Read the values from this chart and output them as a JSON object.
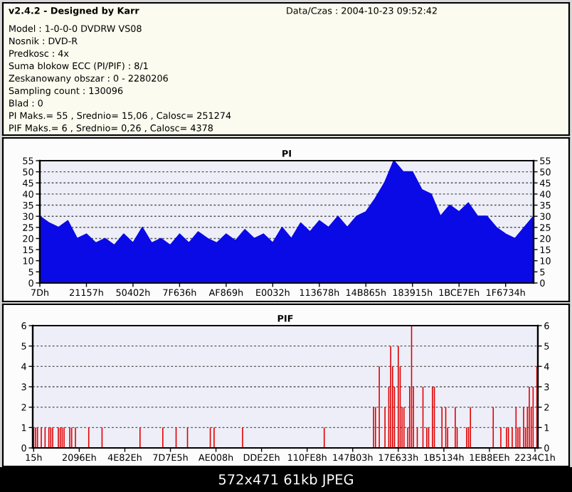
{
  "chart_data": [
    {
      "type": "other",
      "title": "v2.4.2 - Designed by Karr",
      "subtitle": "Data/Czas : 2004-10-23 09:52:42",
      "annotations": [
        "Model : 1-0-0-0 DVDRW VS08",
        "Nosnik : DVD-R",
        "Predkosc : 4x",
        "Suma blokow ECC (PI/PIF) : 8/1",
        "Zeskanowany obszar : 0 - 2280206",
        "Sampling count : 130096",
        "Blad : 0",
        "PI Maks.= 55 , Srednio= 15,06 , Calosc= 251274",
        "PIF Maks.= 6 , Srednio= 0,26 , Calosc= 4378"
      ]
    },
    {
      "type": "area",
      "title": "PI",
      "color": "#0a0ae6",
      "categories": [
        "7Dh",
        null,
        null,
        null,
        null,
        "21157h",
        null,
        null,
        null,
        null,
        "50402h",
        null,
        null,
        null,
        null,
        "7F636h",
        null,
        null,
        null,
        null,
        "AF869h",
        null,
        null,
        null,
        null,
        "E0032h",
        null,
        null,
        null,
        null,
        "113678h",
        null,
        null,
        null,
        null,
        "14B865h",
        null,
        null,
        null,
        null,
        "183915h",
        null,
        null,
        null,
        null,
        "1BCE7Eh",
        null,
        null,
        null,
        null,
        "1F6734h",
        null,
        null,
        null
      ],
      "values": [
        30,
        27,
        25,
        28,
        20,
        22,
        18,
        20,
        17,
        22,
        18,
        25,
        18,
        20,
        17,
        22,
        18,
        23,
        20,
        18,
        22,
        19,
        24,
        20,
        22,
        18,
        25,
        20,
        27,
        23,
        28,
        25,
        30,
        25,
        30,
        32,
        38,
        45,
        55,
        50,
        50,
        42,
        40,
        30,
        35,
        32,
        36,
        30,
        30,
        25,
        22,
        20,
        25,
        30
      ],
      "ylim": [
        0,
        55
      ],
      "yticks": [
        0,
        5,
        10,
        15,
        20,
        25,
        30,
        35,
        40,
        45,
        50,
        55
      ],
      "y2lim": [
        0,
        55
      ],
      "y2ticks": [
        0,
        5,
        10,
        15,
        20,
        25,
        30,
        35,
        40,
        45,
        50,
        55
      ],
      "grid": "y"
    },
    {
      "type": "bar",
      "title": "PIF",
      "color": "#e00000",
      "categories": [
        "15h",
        null,
        null,
        null,
        null,
        null,
        null,
        null,
        null,
        null,
        null,
        null,
        null,
        null,
        null,
        null,
        null,
        null,
        null,
        null,
        null,
        null,
        null,
        null,
        "2096Eh",
        null,
        null,
        null,
        null,
        null,
        null,
        null,
        null,
        null,
        null,
        null,
        null,
        null,
        null,
        null,
        null,
        null,
        null,
        null,
        null,
        null,
        null,
        null,
        "4E82Eh",
        null,
        null,
        null,
        null,
        null,
        null,
        null,
        null,
        null,
        null,
        null,
        null,
        null,
        null,
        null,
        null,
        null,
        null,
        null,
        null,
        null,
        null,
        null,
        "7D7E5h",
        null,
        null,
        null,
        null,
        null,
        null,
        null,
        null,
        null,
        null,
        null,
        null,
        null,
        null,
        null,
        null,
        null,
        null,
        null,
        null,
        null,
        null,
        null,
        "AE008h",
        null,
        null,
        null,
        null,
        null,
        null,
        null,
        null,
        null,
        null,
        null,
        null,
        null,
        null,
        null,
        null,
        null,
        null,
        null,
        null,
        null,
        null,
        null,
        "DDE2Eh",
        null,
        null,
        null,
        null,
        null,
        null,
        null,
        null,
        null,
        null,
        null,
        null,
        null,
        null,
        null,
        null,
        null,
        null,
        null,
        null,
        null,
        null,
        null,
        "110FE8h",
        null,
        null,
        null,
        null,
        null,
        null,
        null,
        null,
        null,
        null,
        null,
        null,
        null,
        null,
        null,
        null,
        null,
        null,
        null,
        null,
        null,
        null,
        null,
        "147B03h",
        null,
        null,
        null,
        null,
        null,
        null,
        null,
        null,
        null,
        null,
        null,
        null,
        null,
        null,
        null,
        null,
        null,
        null,
        null,
        null,
        null,
        null,
        null,
        "17E633h",
        null,
        null,
        null,
        null,
        null,
        null,
        null,
        null,
        null,
        null,
        null,
        null,
        null,
        null,
        null,
        null,
        null,
        null,
        null,
        null,
        null,
        null,
        null,
        "1B5134h",
        null,
        null,
        null,
        null,
        null,
        null,
        null,
        null,
        null,
        null,
        null,
        null,
        null,
        null,
        null,
        null,
        null,
        null,
        null,
        null,
        null,
        null,
        null,
        "1EB8EEh",
        null,
        null,
        null,
        null,
        null,
        null,
        null,
        null,
        null,
        null,
        null,
        null,
        null,
        null,
        null,
        null,
        null,
        null,
        null,
        null,
        null,
        null,
        null,
        "2234C1h",
        null
      ],
      "values": [
        1,
        1,
        1,
        0,
        1,
        0,
        1,
        0,
        1,
        1,
        1,
        0,
        0,
        1,
        1,
        1,
        1,
        0,
        0,
        1,
        1,
        0,
        1,
        0,
        0,
        0,
        0,
        0,
        0,
        1,
        0,
        0,
        0,
        0,
        0,
        0,
        1,
        0,
        0,
        0,
        0,
        0,
        0,
        0,
        0,
        0,
        0,
        0,
        0,
        0,
        0,
        0,
        0,
        0,
        0,
        0,
        1,
        0,
        0,
        0,
        0,
        0,
        0,
        0,
        0,
        0,
        0,
        0,
        1,
        0,
        0,
        0,
        0,
        0,
        0,
        1,
        0,
        0,
        0,
        0,
        0,
        1,
        0,
        0,
        0,
        0,
        0,
        0,
        0,
        0,
        0,
        0,
        0,
        1,
        0,
        1,
        0,
        0,
        0,
        0,
        0,
        0,
        0,
        0,
        0,
        0,
        0,
        0,
        0,
        0,
        1,
        0,
        0,
        0,
        0,
        0,
        0,
        0,
        0,
        0,
        0,
        0,
        0,
        0,
        0,
        0,
        0,
        0,
        0,
        0,
        0,
        0,
        0,
        0,
        0,
        0,
        0,
        0,
        0,
        0,
        0,
        0,
        0,
        0,
        0,
        0,
        0,
        0,
        0,
        0,
        0,
        0,
        0,
        1,
        0,
        0,
        0,
        0,
        0,
        0,
        0,
        0,
        0,
        0,
        0,
        0,
        0,
        0,
        0,
        0,
        0,
        0,
        0,
        0,
        0,
        0,
        0,
        0,
        0,
        2,
        2,
        0,
        4,
        0,
        0,
        2,
        0,
        3,
        5,
        4,
        3,
        0,
        5,
        4,
        2,
        2,
        0,
        1,
        3,
        6,
        3,
        0,
        1,
        0,
        0,
        3,
        0,
        1,
        1,
        0,
        3,
        3,
        0,
        0,
        0,
        2,
        0,
        2,
        1,
        0,
        0,
        0,
        2,
        1,
        0,
        0,
        0,
        0,
        1,
        1,
        2,
        0,
        0,
        0,
        0,
        0,
        0,
        0,
        0,
        0,
        0,
        0,
        2,
        0,
        0,
        0,
        1,
        0,
        0,
        1,
        1,
        0,
        1,
        0,
        2,
        1,
        1,
        0,
        2,
        1,
        2,
        3,
        2,
        3,
        0,
        4
      ],
      "ylim": [
        0,
        6
      ],
      "yticks": [
        0,
        1,
        2,
        3,
        4,
        5,
        6
      ],
      "y2lim": [
        0,
        6
      ],
      "y2ticks": [
        0,
        1,
        2,
        3,
        4,
        5,
        6
      ],
      "grid": "y",
      "annotations": [
        "572x471 61kb JPEG"
      ]
    }
  ]
}
